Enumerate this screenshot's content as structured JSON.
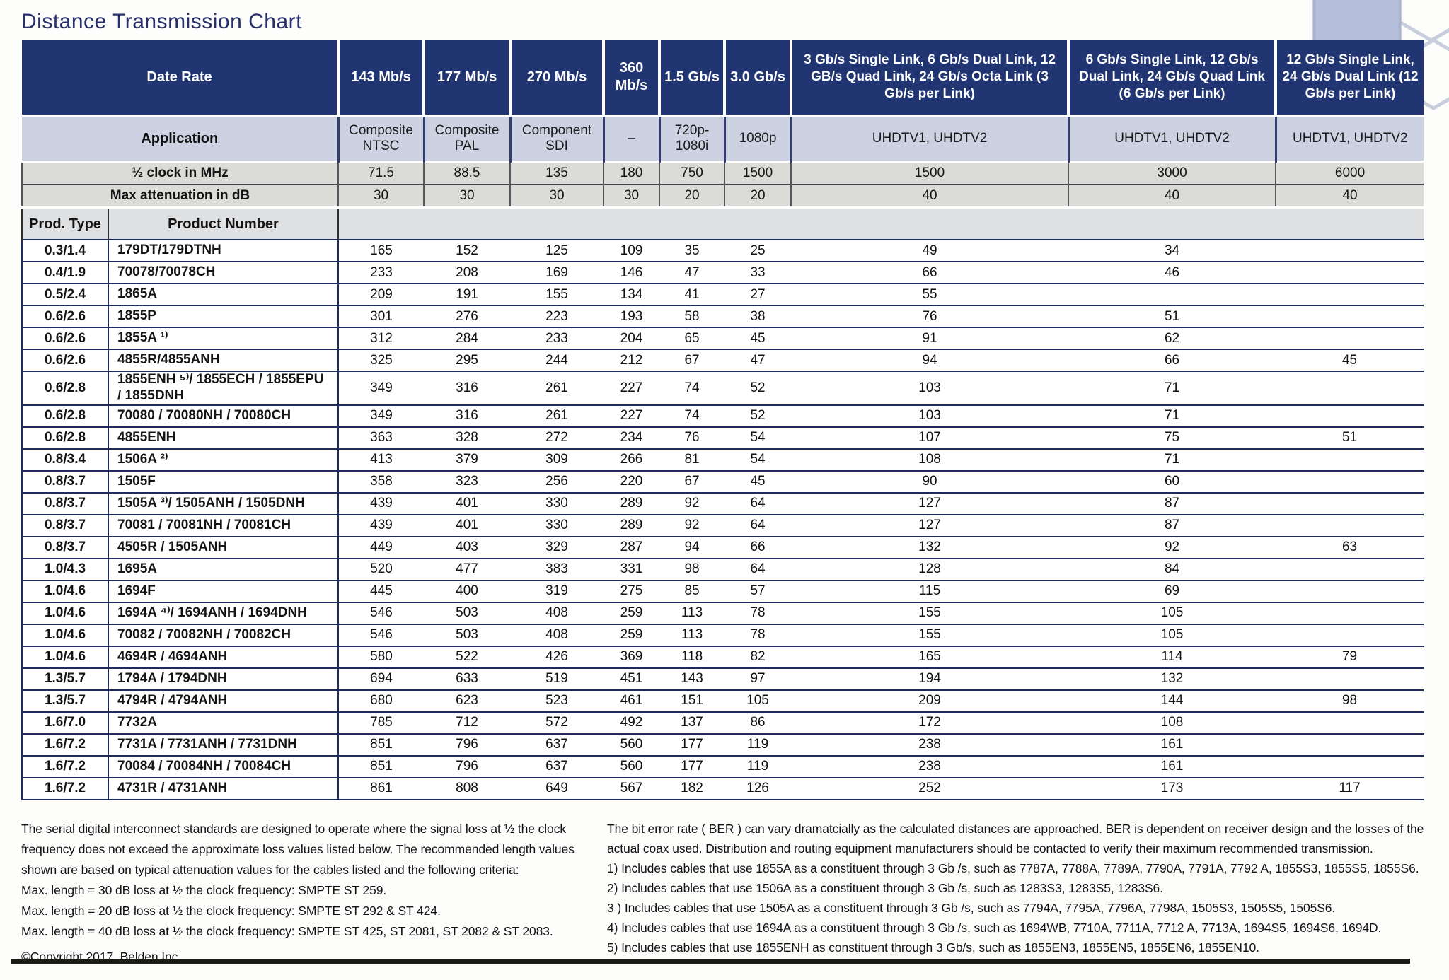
{
  "title": "Distance Transmission Chart",
  "table": {
    "header": {
      "date_rate_label": "Date Rate",
      "application_label": "Application",
      "clock_label": "½ clock in MHz",
      "attenuation_label": "Max attenuation in dB",
      "prod_type_label": "Prod. Type",
      "product_number_label": "Product Number",
      "data_rates": [
        "143 Mb/s",
        "177 Mb/s",
        "270 Mb/s",
        "360 Mb/s",
        "1.5 Gb/s",
        "3.0 Gb/s",
        "3 Gb/s Single Link, 6 Gb/s Dual Link, 12 GB/s Quad Link, 24 Gb/s Octa Link (3 Gb/s per Link)",
        "6 Gb/s Single Link, 12 Gb/s Dual Link, 24 Gb/s Quad Link (6 Gb/s per Link)",
        "12 Gb/s Single Link, 24 Gb/s Dual Link (12 Gb/s per Link)"
      ],
      "applications": [
        "Composite NTSC",
        "Composite PAL",
        "Component SDI",
        "–",
        "720p-1080i",
        "1080p",
        "UHDTV1, UHDTV2",
        "UHDTV1, UHDTV2",
        "UHDTV1, UHDTV2"
      ],
      "clock_mhz": [
        "71.5",
        "88.5",
        "135",
        "180",
        "750",
        "1500",
        "1500",
        "3000",
        "6000"
      ],
      "max_attenuation_db": [
        "30",
        "30",
        "30",
        "30",
        "20",
        "20",
        "40",
        "40",
        "40"
      ]
    },
    "rows": [
      {
        "type": "0.3/1.4",
        "product": "179DT/179DTNH",
        "values": [
          "165",
          "152",
          "125",
          "109",
          "35",
          "25",
          "49",
          "34",
          ""
        ]
      },
      {
        "type": "0.4/1.9",
        "product": "70078/70078CH",
        "values": [
          "233",
          "208",
          "169",
          "146",
          "47",
          "33",
          "66",
          "46",
          ""
        ]
      },
      {
        "type": "0.5/2.4",
        "product": "1865A",
        "values": [
          "209",
          "191",
          "155",
          "134",
          "41",
          "27",
          "55",
          "",
          ""
        ]
      },
      {
        "type": "0.6/2.6",
        "product": "1855P",
        "values": [
          "301",
          "276",
          "223",
          "193",
          "58",
          "38",
          "76",
          "51",
          ""
        ]
      },
      {
        "type": "0.6/2.6",
        "product": "1855A ¹⁾",
        "values": [
          "312",
          "284",
          "233",
          "204",
          "65",
          "45",
          "91",
          "62",
          ""
        ]
      },
      {
        "type": "0.6/2.6",
        "product": "4855R/4855ANH",
        "values": [
          "325",
          "295",
          "244",
          "212",
          "67",
          "47",
          "94",
          "66",
          "45"
        ]
      },
      {
        "type": "0.6/2.8",
        "product": "1855ENH ⁵⁾/ 1855ECH / 1855EPU / 1855DNH",
        "values": [
          "349",
          "316",
          "261",
          "227",
          "74",
          "52",
          "103",
          "71",
          ""
        ]
      },
      {
        "type": "0.6/2.8",
        "product": "70080 / 70080NH / 70080CH",
        "values": [
          "349",
          "316",
          "261",
          "227",
          "74",
          "52",
          "103",
          "71",
          ""
        ]
      },
      {
        "type": "0.6/2.8",
        "product": "4855ENH",
        "values": [
          "363",
          "328",
          "272",
          "234",
          "76",
          "54",
          "107",
          "75",
          "51"
        ]
      },
      {
        "type": "0.8/3.4",
        "product": "1506A ²⁾",
        "values": [
          "413",
          "379",
          "309",
          "266",
          "81",
          "54",
          "108",
          "71",
          ""
        ]
      },
      {
        "type": "0.8/3.7",
        "product": "1505F",
        "values": [
          "358",
          "323",
          "256",
          "220",
          "67",
          "45",
          "90",
          "60",
          ""
        ]
      },
      {
        "type": "0.8/3.7",
        "product": "1505A ³⁾/ 1505ANH / 1505DNH",
        "values": [
          "439",
          "401",
          "330",
          "289",
          "92",
          "64",
          "127",
          "87",
          ""
        ]
      },
      {
        "type": "0.8/3.7",
        "product": "70081 / 70081NH / 70081CH",
        "values": [
          "439",
          "401",
          "330",
          "289",
          "92",
          "64",
          "127",
          "87",
          ""
        ]
      },
      {
        "type": "0.8/3.7",
        "product": "4505R / 1505ANH",
        "values": [
          "449",
          "403",
          "329",
          "287",
          "94",
          "66",
          "132",
          "92",
          "63"
        ]
      },
      {
        "type": "1.0/4.3",
        "product": "1695A",
        "values": [
          "520",
          "477",
          "383",
          "331",
          "98",
          "64",
          "128",
          "84",
          ""
        ]
      },
      {
        "type": "1.0/4.6",
        "product": "1694F",
        "values": [
          "445",
          "400",
          "319",
          "275",
          "85",
          "57",
          "115",
          "69",
          ""
        ]
      },
      {
        "type": "1.0/4.6",
        "product": "1694A ⁴⁾/ 1694ANH / 1694DNH",
        "values": [
          "546",
          "503",
          "408",
          "259",
          "113",
          "78",
          "155",
          "105",
          ""
        ]
      },
      {
        "type": "1.0/4.6",
        "product": "70082 / 70082NH / 70082CH",
        "values": [
          "546",
          "503",
          "408",
          "259",
          "113",
          "78",
          "155",
          "105",
          ""
        ]
      },
      {
        "type": "1.0/4.6",
        "product": "4694R / 4694ANH",
        "values": [
          "580",
          "522",
          "426",
          "369",
          "118",
          "82",
          "165",
          "114",
          "79"
        ]
      },
      {
        "type": "1.3/5.7",
        "product": "1794A / 1794DNH",
        "values": [
          "694",
          "633",
          "519",
          "451",
          "143",
          "97",
          "194",
          "132",
          ""
        ]
      },
      {
        "type": "1.3/5.7",
        "product": "4794R / 4794ANH",
        "values": [
          "680",
          "623",
          "523",
          "461",
          "151",
          "105",
          "209",
          "144",
          "98"
        ]
      },
      {
        "type": "1.6/7.0",
        "product": "7732A",
        "values": [
          "785",
          "712",
          "572",
          "492",
          "137",
          "86",
          "172",
          "108",
          ""
        ]
      },
      {
        "type": "1.6/7.2",
        "product": "7731A / 7731ANH / 7731DNH",
        "values": [
          "851",
          "796",
          "637",
          "560",
          "177",
          "119",
          "238",
          "161",
          ""
        ]
      },
      {
        "type": "1.6/7.2",
        "product": "70084 / 70084NH / 70084CH",
        "values": [
          "851",
          "796",
          "637",
          "560",
          "177",
          "119",
          "238",
          "161",
          ""
        ]
      },
      {
        "type": "1.6/7.2",
        "product": "4731R / 4731ANH",
        "values": [
          "861",
          "808",
          "649",
          "567",
          "182",
          "126",
          "252",
          "173",
          "117"
        ]
      }
    ]
  },
  "footer_left": {
    "paragraph": "The serial digital interconnect standards are designed to operate where the signal loss at ½ the clock frequency does not exceed the approximate loss values listed below. The recommended length values shown are based on typical attenuation values for the cables listed and the following criteria:",
    "criteria": [
      "Max. length = 30 dB loss at ½ the clock frequency: SMPTE ST 259.",
      "Max. length = 20 dB loss at ½ the clock frequency: SMPTE ST 292 & ST 424.",
      "Max. length = 40 dB loss at ½ the clock frequency: SMPTE ST 425, ST 2081, ST 2082 & ST 2083."
    ],
    "copyright": "©Copyright 2017, Belden Inc."
  },
  "footer_right": {
    "paragraph": "The bit error rate ( BER ) can vary dramatcially as the calculated distances are approached. BER is dependent on receiver design and the losses of the actual coax used. Distribution and routing equipment manufacturers should be contacted to verify their maximum recommended transmission.",
    "notes": [
      "1) Includes cables that use 1855A as a constituent through 3 Gb /s, such as 7787A, 7788A, 7789A, 7790A, 7791A, 7792 A, 1855S3, 1855S5, 1855S6.",
      "2) Includes cables that use 1506A as a constituent through 3 Gb /s, such as 1283S3, 1283S5, 1283S6.",
      "3 ) Includes cables that use 1505A as a constituent through 3 Gb /s, such as 7794A, 7795A, 7796A, 7798A, 1505S3, 1505S5, 1505S6.",
      "4) Includes cables that use 1694A as a constituent through 3 Gb /s, such as 1694WB, 7710A, 7711A, 7712 A, 7713A, 1694S5, 1694S6, 1694D.",
      "5) Includes cables that use 1855ENH as constituent through 3 Gb/s, such as 1855EN3, 1855EN5, 1855EN6, 1855EN10."
    ]
  },
  "colors": {
    "header_navy": "#203572",
    "application_row": "#ccd2e2",
    "metric_row_gray": "#dbdcd8",
    "band_gray": "#dfe0e2",
    "rule_navy": "#1f2b5c",
    "title_navy": "#27306b",
    "hex_fill": "#b6bfdb",
    "hex_outline": "#c8cede",
    "bottom_bar": "#1c1c16"
  }
}
